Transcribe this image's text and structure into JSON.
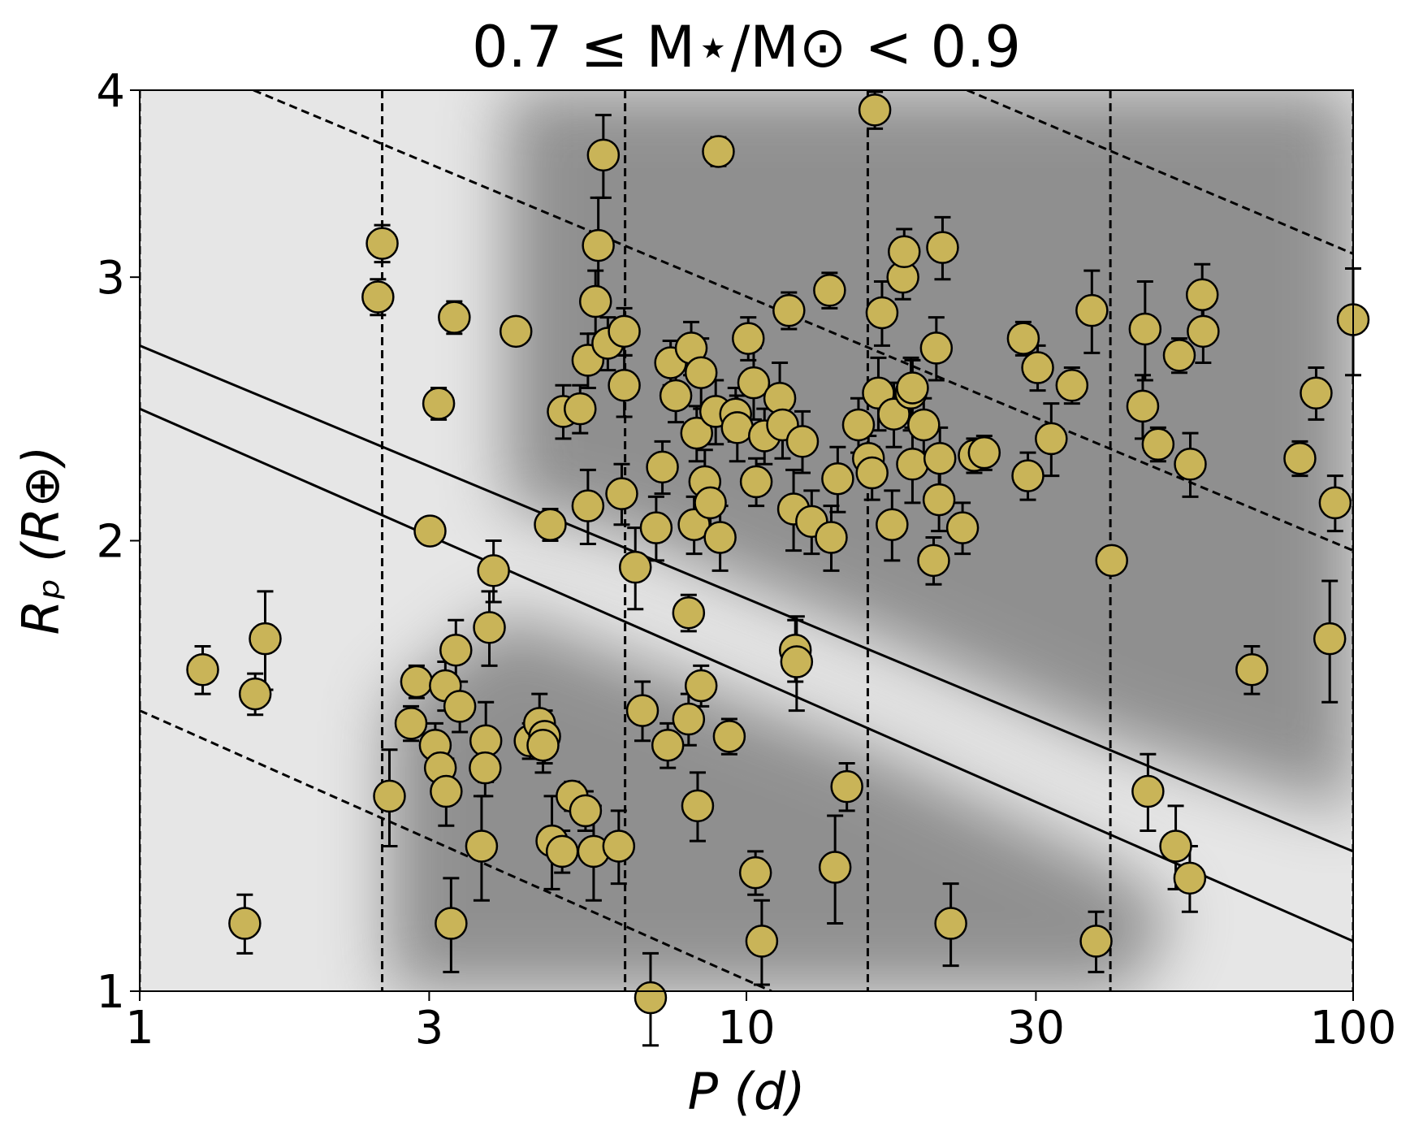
{
  "chart_data": {
    "type": "scatter",
    "title": "0.7 ≤ M⋆/M⊙ < 0.9",
    "xlabel": "P (d)",
    "ylabel": "Rₚ (R⊕)",
    "xscale": "log",
    "yscale": "log",
    "xlim": [
      1,
      100
    ],
    "ylim": [
      1,
      4
    ],
    "xticks": [
      1,
      3,
      10,
      30,
      100
    ],
    "yticks": [
      1,
      2,
      3,
      4
    ],
    "vlines": [
      1,
      2.51,
      6.31,
      15.85,
      39.8,
      100
    ],
    "lines": [
      {
        "style": "solid",
        "x": [
          1,
          100
        ],
        "y": [
          2.7,
          1.24
        ]
      },
      {
        "style": "solid",
        "x": [
          1,
          100
        ],
        "y": [
          2.45,
          1.08
        ]
      },
      {
        "style": "dashed",
        "x": [
          1,
          11
        ],
        "y": [
          1.54,
          1
        ]
      },
      {
        "style": "dashed",
        "x": [
          1.54,
          100
        ],
        "y": [
          4,
          1.97
        ]
      },
      {
        "style": "dashed",
        "x": [
          23.1,
          100
        ],
        "y": [
          4,
          3.11
        ]
      }
    ],
    "series": [
      {
        "color": "#c9b458",
        "x": [
          1.27,
          1.55,
          1.61,
          1.49,
          2.47,
          2.51,
          2.58,
          3.01,
          3.11,
          3.3,
          2.86,
          2.8,
          3.07,
          3.13,
          3.2,
          3.19,
          3.32,
          3.37,
          3.26,
          3.72,
          3.71,
          3.66,
          3.77,
          3.83,
          4.17,
          4.75,
          4.4,
          4.56,
          4.65,
          4.62,
          4.78,
          4.97,
          4.99,
          5.32,
          5.16,
          5.43,
          5.6,
          5.48,
          5.48,
          5.64,
          5.7,
          5.81,
          5.91,
          6.29,
          6.29,
          6.23,
          6.16,
          6.56,
          6.74,
          6.95,
          7.1,
          7.27,
          7.42,
          7.5,
          7.65,
          8.03,
          8.03,
          8.11,
          8.2,
          8.28,
          8.31,
          8.42,
          8.42,
          8.54,
          8.72,
          8.9,
          9.05,
          8.99,
          9.37,
          9.6,
          9.66,
          10.07,
          10.28,
          10.38,
          10.35,
          10.6,
          10.71,
          11.35,
          11.47,
          11.75,
          11.96,
          12.04,
          12.1,
          12.37,
          12.81,
          13.71,
          13.8,
          14.0,
          14.14,
          14.64,
          15.3,
          15.89,
          16.11,
          16.28,
          16.5,
          16.73,
          17.38,
          17.5,
          18.11,
          18.2,
          18.67,
          18.78,
          18.78,
          19.6,
          20.35,
          20.56,
          20.77,
          20.84,
          21.05,
          21.72,
          22.71,
          23.74,
          24.66,
          28.6,
          29.1,
          30.2,
          31.8,
          34.4,
          37.1,
          37.7,
          40.0,
          45.0,
          45.4,
          45.9,
          47.7,
          51.0,
          51.7,
          53.8,
          53.9,
          56.6,
          56.4,
          68.1,
          81.7,
          86.9,
          91.5,
          93.4,
          100
        ],
        "y": [
          1.64,
          1.58,
          1.72,
          1.11,
          2.91,
          3.16,
          1.35,
          2.03,
          2.47,
          2.82,
          1.61,
          1.51,
          1.46,
          1.41,
          1.36,
          1.6,
          1.69,
          1.55,
          1.11,
          1.47,
          1.41,
          1.25,
          1.75,
          1.91,
          2.76,
          2.05,
          1.47,
          1.51,
          1.48,
          1.46,
          1.26,
          1.24,
          2.44,
          2.45,
          1.35,
          1.32,
          1.24,
          2.11,
          2.64,
          2.89,
          3.15,
          3.62,
          2.71,
          2.76,
          2.54,
          2.15,
          1.25,
          1.92,
          1.54,
          0.99,
          2.04,
          2.24,
          1.46,
          2.63,
          2.5,
          1.52,
          1.79,
          2.69,
          2.05,
          2.36,
          1.33,
          2.59,
          1.6,
          2.19,
          2.12,
          2.44,
          2.01,
          3.64,
          1.48,
          2.43,
          2.38,
          2.73,
          2.55,
          2.19,
          1.2,
          1.08,
          2.35,
          2.49,
          2.39,
          2.85,
          2.1,
          1.69,
          1.66,
          2.33,
          2.06,
          2.94,
          2.01,
          1.21,
          2.2,
          1.37,
          2.39,
          2.27,
          2.22,
          3.88,
          2.51,
          2.84,
          2.05,
          2.43,
          3.0,
          3.12,
          2.51,
          2.25,
          2.53,
          2.39,
          1.94,
          2.69,
          2.13,
          2.27,
          3.14,
          1.11,
          2.04,
          2.28,
          2.29,
          2.73,
          2.21,
          2.61,
          2.34,
          2.54,
          2.85,
          1.08,
          1.94,
          2.46,
          2.77,
          1.36,
          2.32,
          1.25,
          2.66,
          1.19,
          2.25,
          2.76,
          2.92,
          1.64,
          2.27,
          2.51,
          1.72,
          2.12,
          2.81
        ],
        "yerr": [
          0.06,
          0.05,
          0.13,
          0.05,
          0.08,
          0.09,
          0.1,
          0.04,
          0.06,
          0.07,
          0.04,
          0.04,
          0.05,
          0.06,
          0.07,
          0.06,
          0.08,
          0.06,
          0.08,
          0.09,
          0.06,
          0.1,
          0.1,
          0.09,
          0.05,
          0.05,
          0.04,
          0.07,
          0.06,
          0.06,
          0.09,
          0.04,
          0.1,
          0.09,
          0.03,
          0.04,
          0.09,
          0.12,
          0.11,
          0.14,
          0.24,
          0.23,
          0.11,
          0.1,
          0.12,
          0.1,
          0.07,
          0.12,
          0.07,
          0.07,
          0.1,
          0.09,
          0.05,
          0.09,
          0.1,
          0.06,
          0.05,
          0.11,
          0.09,
          0.1,
          0.07,
          0.14,
          0.05,
          0.11,
          0.1,
          0.12,
          0.1,
          0.08,
          0.04,
          0.1,
          0.12,
          0.09,
          0.14,
          0.08,
          0.04,
          0.07,
          0.1,
          0.14,
          0.12,
          0.08,
          0.13,
          0.08,
          0.12,
          0.11,
          0.1,
          0.08,
          0.1,
          0.1,
          0.11,
          0.05,
          0.1,
          0.08,
          0.09,
          0.11,
          0.14,
          0.14,
          0.11,
          0.12,
          0.1,
          0.11,
          0.14,
          0.13,
          0.11,
          0.1,
          0.07,
          0.13,
          0.1,
          0.11,
          0.15,
          0.07,
          0.08,
          0.06,
          0.06,
          0.07,
          0.08,
          0.09,
          0.13,
          0.07,
          0.18,
          0.05,
          0.02,
          0.12,
          0.21,
          0.08,
          0.06,
          0.08,
          0.07,
          0.06,
          0.11,
          0.13,
          0.14,
          0.06,
          0.06,
          0.1,
          0.16,
          0.09,
          0.23
        ]
      }
    ]
  }
}
